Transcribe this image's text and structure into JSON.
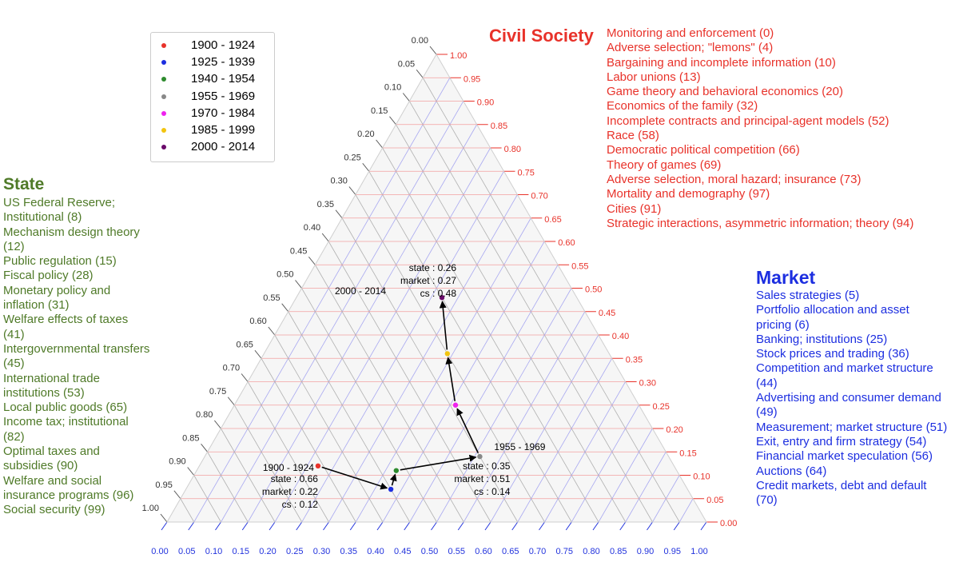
{
  "chart_data": {
    "type": "scatter",
    "subtype": "ternary",
    "axes": {
      "bottom": {
        "ticks": [
          "0.00",
          "0.05",
          "0.10",
          "0.15",
          "0.20",
          "0.25",
          "0.30",
          "0.35",
          "0.40",
          "0.45",
          "0.50",
          "0.55",
          "0.60",
          "0.65",
          "0.70",
          "0.75",
          "0.80",
          "0.85",
          "0.90",
          "0.95",
          "1.00"
        ],
        "color": "#2233dd"
      },
      "right": {
        "ticks": [
          "0.00",
          "0.05",
          "0.10",
          "0.15",
          "0.20",
          "0.25",
          "0.30",
          "0.35",
          "0.40",
          "0.45",
          "0.50",
          "0.55",
          "0.60",
          "0.65",
          "0.70",
          "0.75",
          "0.80",
          "0.85",
          "0.90",
          "0.95",
          "1.00"
        ],
        "color": "#e8322a"
      },
      "left": {
        "ticks": [
          "0.00",
          "0.05",
          "0.10",
          "0.15",
          "0.20",
          "0.25",
          "0.30",
          "0.35",
          "0.40",
          "0.45",
          "0.50",
          "0.55",
          "0.60",
          "0.65",
          "0.70",
          "0.75",
          "0.80",
          "0.85",
          "0.90",
          "0.95",
          "1.00"
        ],
        "color": "#333333"
      }
    },
    "series": [
      {
        "name": "1900 - 1924",
        "color": "#e8322a",
        "state": 0.66,
        "market": 0.22,
        "cs": 0.12
      },
      {
        "name": "1925 - 1939",
        "color": "#1c2ee0",
        "state": 0.55,
        "market": 0.38,
        "cs": 0.07
      },
      {
        "name": "1940 - 1954",
        "color": "#2e8b2e",
        "state": 0.52,
        "market": 0.37,
        "cs": 0.11
      },
      {
        "name": "1955 - 1969",
        "color": "#888888",
        "state": 0.35,
        "market": 0.51,
        "cs": 0.14
      },
      {
        "name": "1970 - 1984",
        "color": "#ee22ee",
        "state": 0.34,
        "market": 0.41,
        "cs": 0.25
      },
      {
        "name": "1985 - 1999",
        "color": "#f2c40f",
        "state": 0.3,
        "market": 0.34,
        "cs": 0.36
      },
      {
        "name": "2000 - 2014",
        "color": "#6a0a6a",
        "state": 0.26,
        "market": 0.27,
        "cs": 0.48
      }
    ],
    "annotations": [
      {
        "for": "1900 - 1924",
        "label": "1900 - 1924",
        "lines": [
          "state : 0.66",
          "market : 0.22",
          "cs : 0.12"
        ]
      },
      {
        "for": "1955 - 1969",
        "label": "1955 - 1969",
        "lines": [
          "state : 0.35",
          "market : 0.51",
          "cs : 0.14"
        ]
      },
      {
        "for": "2000 - 2014",
        "label": "2000 - 2014",
        "lines": [
          "state : 0.26",
          "market : 0.27",
          "cs : 0.48"
        ]
      }
    ],
    "legend_position": "top-left",
    "grid": true
  },
  "panels": {
    "state": {
      "title": "State",
      "items": [
        "US Federal Reserve; Institutional (8)",
        "Mechanism design theory (12)",
        "Public regulation (15)",
        "Fiscal policy (28)",
        "Monetary policy and inflation (31)",
        "Welfare effects of taxes (41)",
        "Intergovernmental transfers (45)",
        "International trade institutions (53)",
        "Local public goods (65)",
        "Income tax; institutional (82)",
        "Optimal taxes and subsidies (90)",
        "Welfare and social insurance programs (96)",
        "Social security (99)"
      ]
    },
    "civil_society": {
      "title": "Civil Society",
      "items": [
        "Monitoring and enforcement (0)",
        "Adverse selection; \"lemons\" (4)",
        "Bargaining and incomplete information (10)",
        "Labor unions (13)",
        "Game theory and behavioral economics (20)",
        "Economics of the family (32)",
        "Incomplete contracts and principal-agent models (52)",
        "Race (58)",
        "Democratic political competition (66)",
        "Theory of games (69)",
        "Adverse selection, moral hazard; insurance (73)",
        "Mortality and demography (97)",
        "Cities (91)",
        "Strategic interactions, asymmetric information; theory (94)"
      ]
    },
    "market": {
      "title": "Market",
      "items": [
        "Sales strategies (5)",
        "Portfolio allocation and asset pricing (6)",
        "Banking; institutions (25)",
        "Stock prices and trading (36)",
        "Competition and market structure (44)",
        "Advertising and consumer demand (49)",
        "Measurement; market structure (51)",
        "Exit, entry and firm strategy (54)",
        "Financial market speculation (56)",
        "Auctions (64)",
        "Credit markets, debt and default (70)"
      ]
    }
  }
}
